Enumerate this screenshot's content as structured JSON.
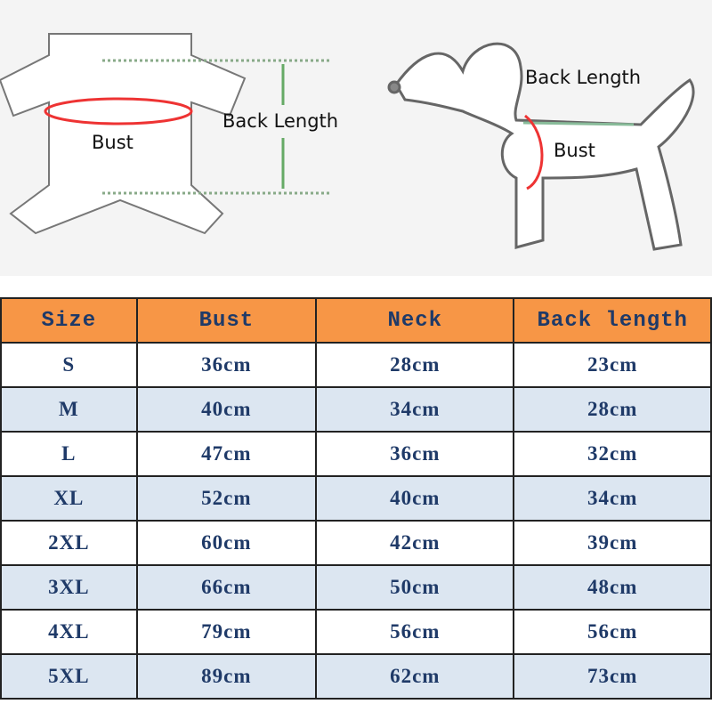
{
  "diagram_labels": {
    "shirt_back_length": "Back Length",
    "shirt_bust": "Bust",
    "dog_back_length": "Back Length",
    "dog_bust": "Bust"
  },
  "colors": {
    "header": "#f79646",
    "alt_row": "#dce6f1",
    "text": "#1f3a68"
  },
  "table": {
    "headers": [
      "Size",
      "Bust",
      "Neck",
      "Back length"
    ],
    "rows": [
      [
        "S",
        "36cm",
        "28cm",
        "23cm"
      ],
      [
        "M",
        "40cm",
        "34cm",
        "28cm"
      ],
      [
        "L",
        "47cm",
        "36cm",
        "32cm"
      ],
      [
        "XL",
        "52cm",
        "40cm",
        "34cm"
      ],
      [
        "2XL",
        "60cm",
        "42cm",
        "39cm"
      ],
      [
        "3XL",
        "66cm",
        "50cm",
        "48cm"
      ],
      [
        "4XL",
        "79cm",
        "56cm",
        "56cm"
      ],
      [
        "5XL",
        "89cm",
        "62cm",
        "73cm"
      ]
    ]
  }
}
